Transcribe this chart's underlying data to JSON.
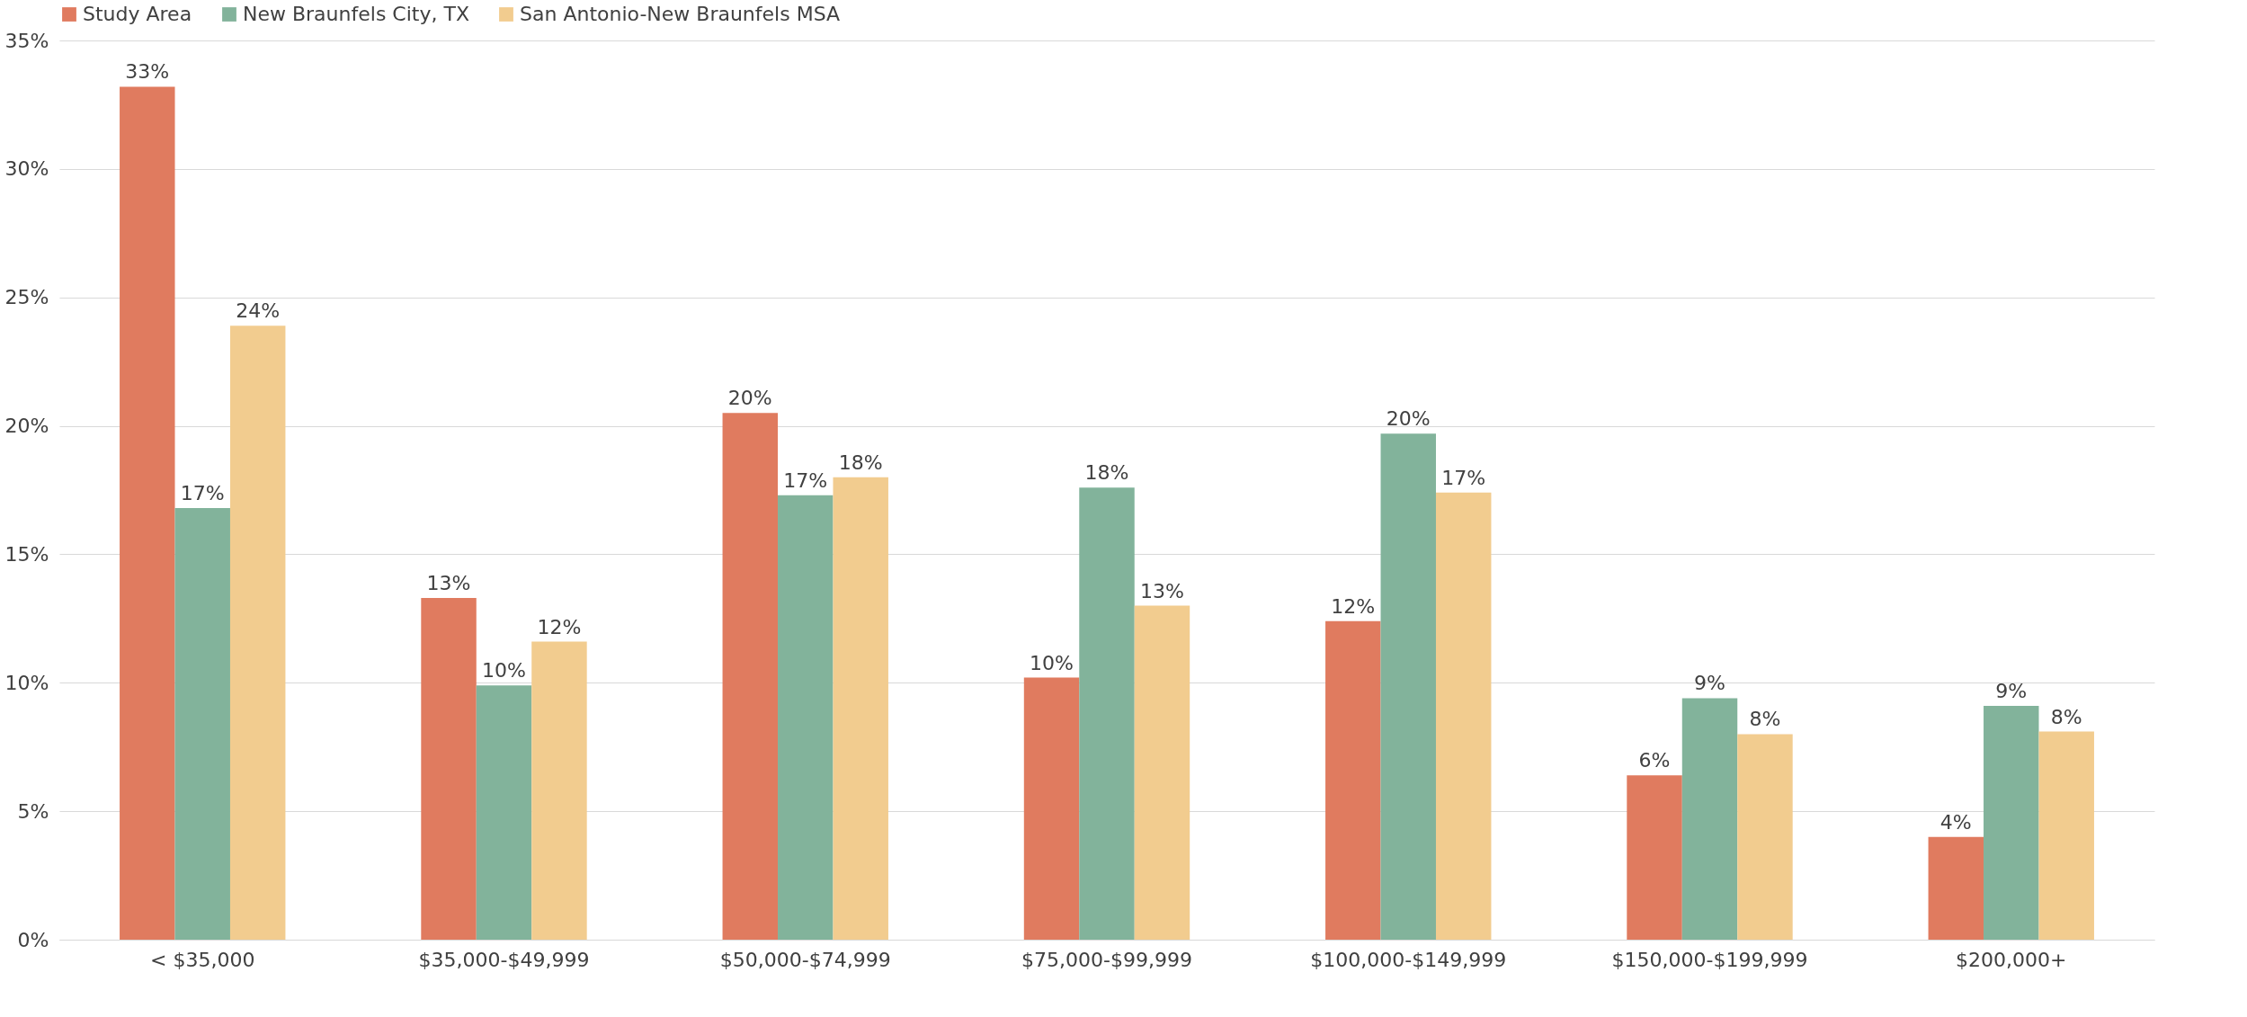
{
  "chart_data": {
    "type": "bar",
    "categories": [
      "< $35,000",
      "$35,000-$49,999",
      "$50,000-$74,999",
      "$75,000-$99,999",
      "$100,000-$149,999",
      "$150,000-$199,999",
      "$200,000+"
    ],
    "series": [
      {
        "name": "Study Area",
        "color": "#e07b5f",
        "values": [
          33.2,
          13.3,
          20.5,
          10.2,
          12.4,
          6.4,
          4.0
        ],
        "value_labels": [
          "33%",
          "13%",
          "20%",
          "10%",
          "12%",
          "6%",
          "4%"
        ]
      },
      {
        "name": "New Braunfels City, TX",
        "color": "#82b39b",
        "values": [
          16.8,
          9.9,
          17.3,
          17.6,
          19.7,
          9.4,
          9.1
        ],
        "value_labels": [
          "17%",
          "10%",
          "17%",
          "18%",
          "20%",
          "9%",
          "9%"
        ]
      },
      {
        "name": "San Antonio-New Braunfels MSA",
        "color": "#f2cc8f",
        "values": [
          23.9,
          11.6,
          18.0,
          13.0,
          17.4,
          8.0,
          8.1
        ],
        "value_labels": [
          "24%",
          "12%",
          "18%",
          "13%",
          "17%",
          "8%",
          "8%"
        ]
      }
    ],
    "ylim": [
      0,
      35
    ],
    "yticks": [
      {
        "value": 0,
        "label": "0%"
      },
      {
        "value": 5,
        "label": "5%"
      },
      {
        "value": 10,
        "label": "10%"
      },
      {
        "value": 15,
        "label": "15%"
      },
      {
        "value": 20,
        "label": "20%"
      },
      {
        "value": 25,
        "label": "25%"
      },
      {
        "value": 30,
        "label": "30%"
      },
      {
        "value": 35,
        "label": "35%"
      }
    ],
    "grid": "y",
    "legend": "top left"
  }
}
